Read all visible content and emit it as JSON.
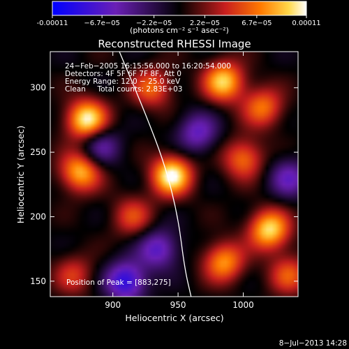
{
  "chart_data": {
    "type": "heatmap",
    "title": "Reconstructed RHESSI Image",
    "xlabel": "Heliocentric X (arcsec)",
    "ylabel": "Heliocentric Y (arcsec)",
    "xlim": [
      852,
      1042
    ],
    "ylim": [
      138,
      328
    ],
    "x_ticks": [
      900,
      950,
      1000
    ],
    "y_ticks": [
      150,
      200,
      250,
      300
    ],
    "colorbar": {
      "min": -0.00011,
      "max": 0.00011,
      "tick_values": [
        -0.00011,
        -6.7e-05,
        -2.2e-05,
        2.2e-05,
        6.7e-05,
        0.00011
      ],
      "tick_labels": [
        "-0.00011",
        "−6.7e−05",
        "−2.2e−05",
        "2.2e−05",
        "6.7e−05",
        "0.00011"
      ],
      "unit_label": "(photons cm⁻² s⁻¹ asec⁻²)"
    },
    "annotations": [
      "24−Feb−2005 16:15:56.000 to 16:20:54.000",
      "Detectors: 4F 5F 6F 7F 8F, Att 0",
      "Energy Range: 12.0 − 25.0 keV",
      "Clean     Total counts: 2.83E+03"
    ],
    "peak_label": "Position of Peak = [883,275]",
    "peak": [
      883,
      275
    ],
    "limb_points": [
      [
        905,
        328
      ],
      [
        925,
        280
      ],
      [
        940,
        240
      ],
      [
        950,
        200
      ],
      [
        955,
        160
      ],
      [
        960,
        138
      ]
    ],
    "sources": [
      {
        "x": 880,
        "y": 275,
        "v": 1.0
      },
      {
        "x": 945,
        "y": 232,
        "v": 1.0
      },
      {
        "x": 875,
        "y": 235,
        "v": 0.8
      },
      {
        "x": 985,
        "y": 305,
        "v": 0.85
      },
      {
        "x": 930,
        "y": 300,
        "v": 0.55
      },
      {
        "x": 1000,
        "y": 245,
        "v": 0.6
      },
      {
        "x": 1015,
        "y": 285,
        "v": 0.6
      },
      {
        "x": 1020,
        "y": 190,
        "v": 0.9
      },
      {
        "x": 985,
        "y": 165,
        "v": 0.7
      },
      {
        "x": 1035,
        "y": 155,
        "v": 0.5
      },
      {
        "x": 915,
        "y": 200,
        "v": 0.45
      },
      {
        "x": 870,
        "y": 155,
        "v": 0.4
      },
      {
        "x": 910,
        "y": 150,
        "v": -0.8
      },
      {
        "x": 935,
        "y": 175,
        "v": -0.6
      },
      {
        "x": 890,
        "y": 255,
        "v": -0.5
      },
      {
        "x": 965,
        "y": 265,
        "v": -0.55
      },
      {
        "x": 1035,
        "y": 230,
        "v": -0.5
      }
    ],
    "grid": false
  },
  "footer": {
    "date": "8−Jul−2013 14:28"
  }
}
